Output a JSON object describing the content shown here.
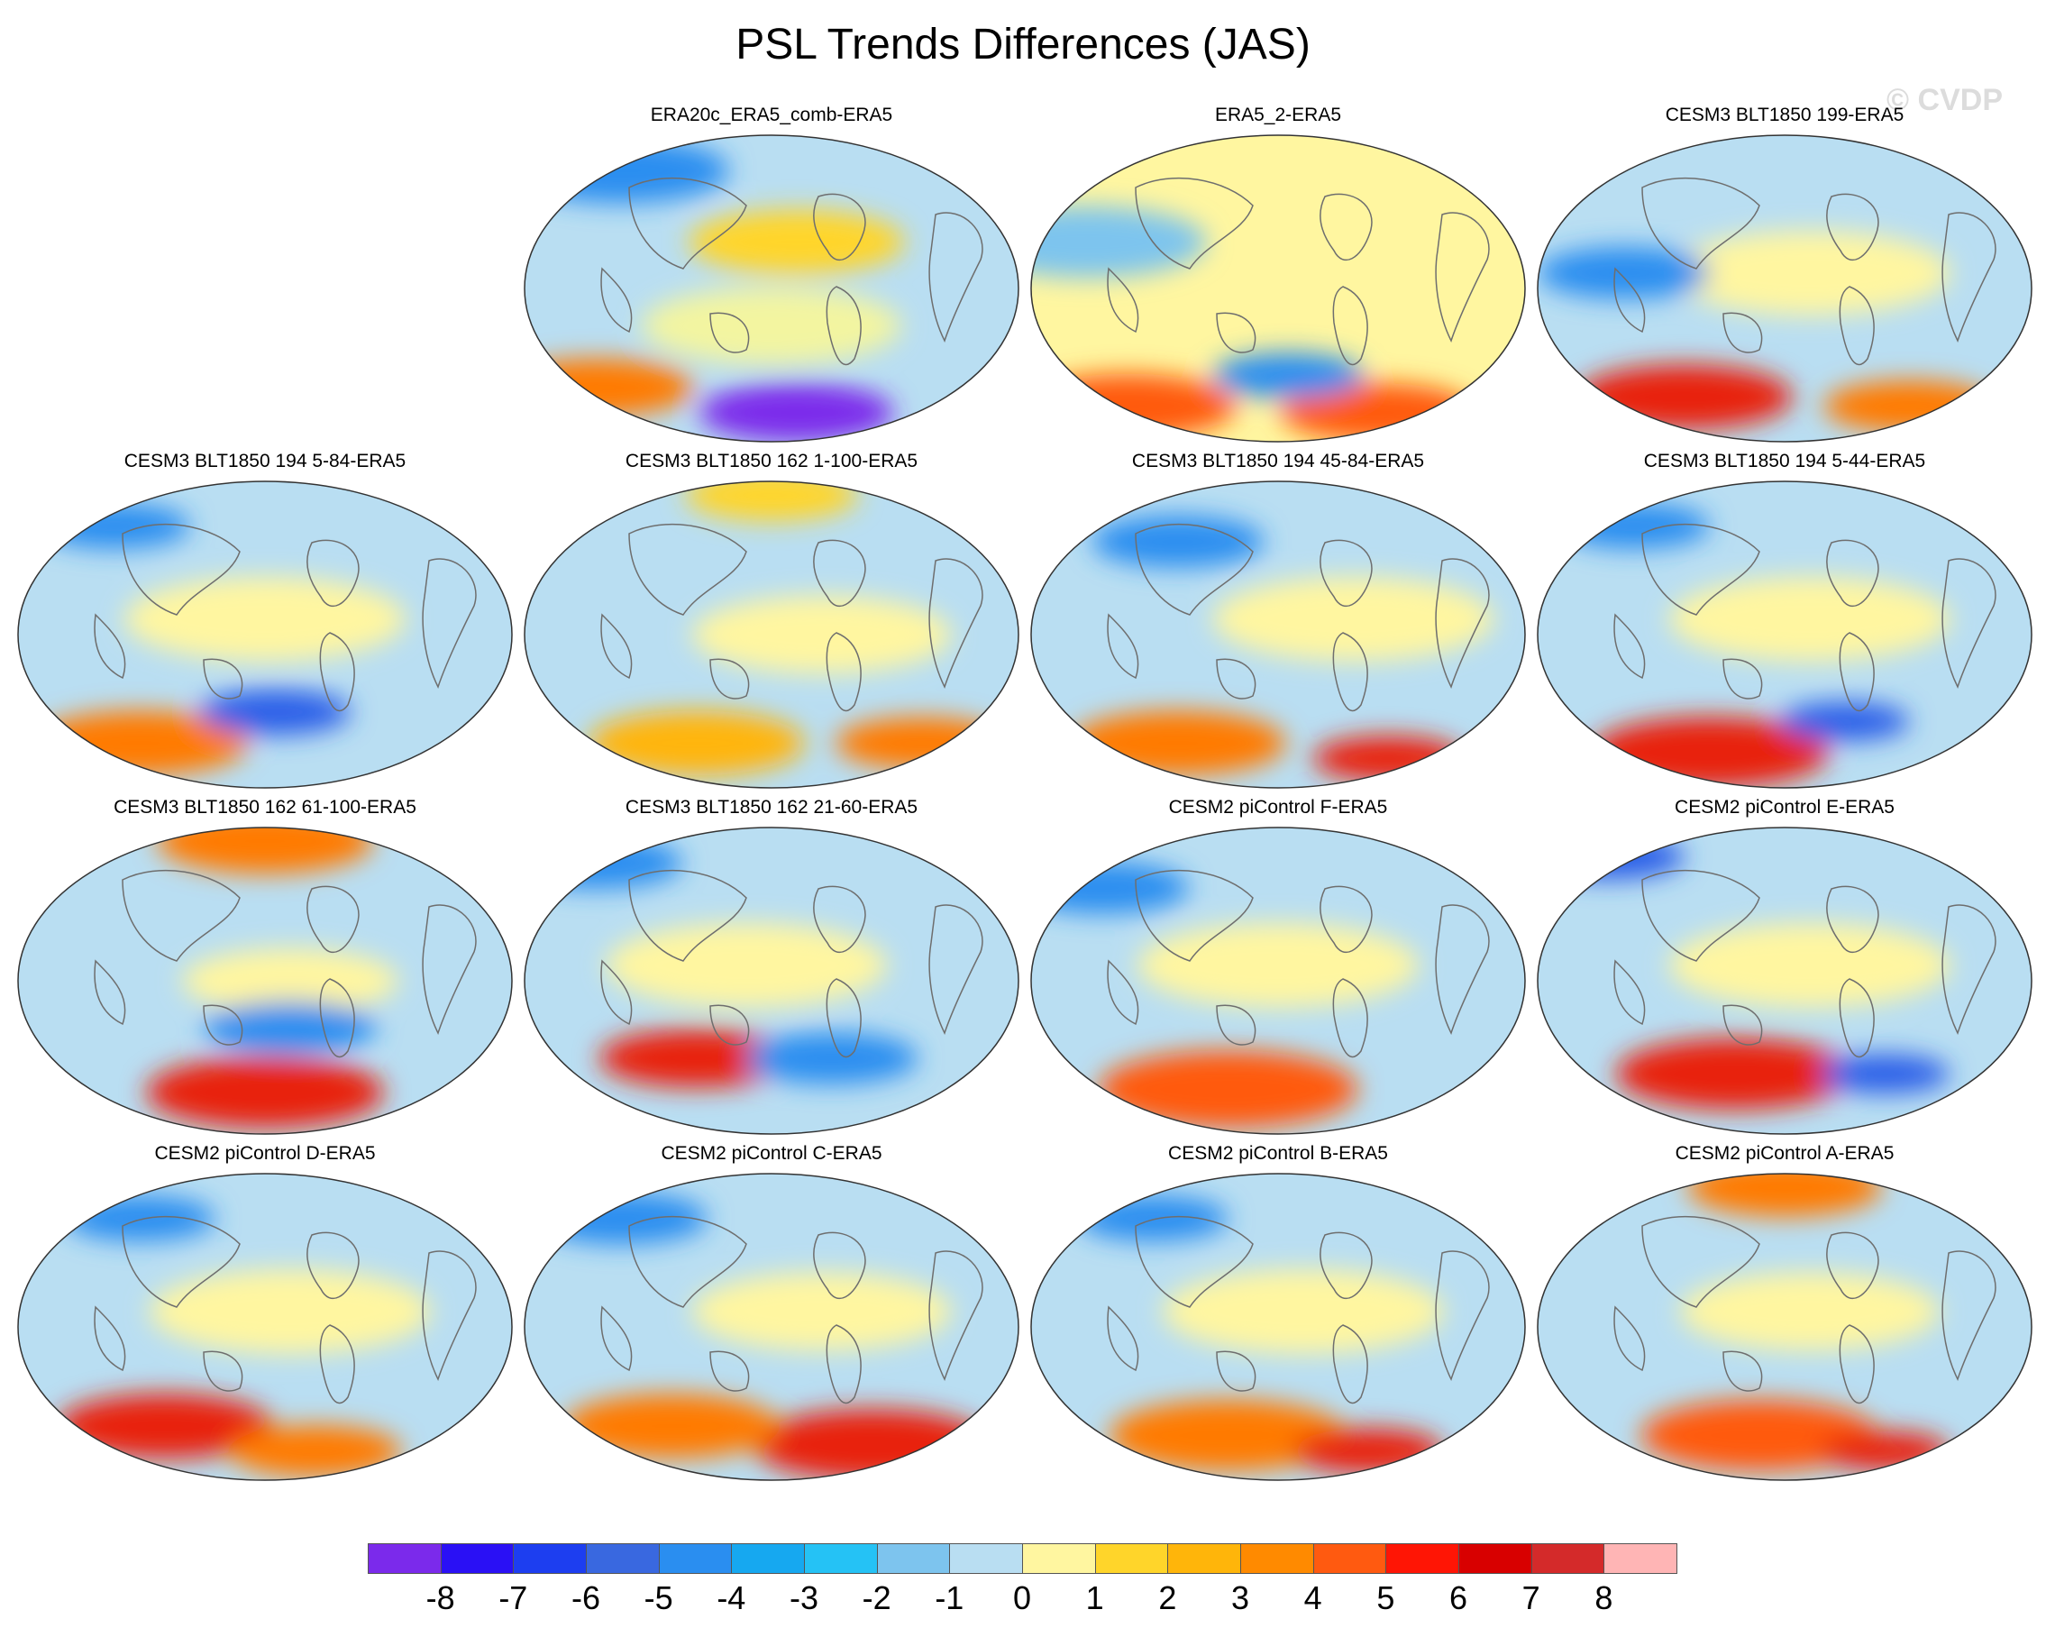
{
  "title": "PSL Trends Differences (JAS)",
  "watermark": "© CVDP",
  "panels": [
    {
      "label": "ERA20c_ERA5_comb-ERA5",
      "base": "#b9def2",
      "blobs": [
        {
          "color": "#2a8ef0",
          "lat": 0.12,
          "lon": 0.2,
          "s": 1.0
        },
        {
          "color": "#ffd52a",
          "lat": 0.35,
          "lon": 0.55,
          "s": 1.0
        },
        {
          "color": "#ff7a00",
          "lat": 0.82,
          "lon": 0.15,
          "s": 0.9
        },
        {
          "color": "#7b2aeb",
          "lat": 0.9,
          "lon": 0.55,
          "s": 0.9
        },
        {
          "color": "#f3f5a0",
          "lat": 0.62,
          "lon": 0.5,
          "s": 1.2
        }
      ]
    },
    {
      "label": "ERA5_2-ERA5",
      "base": "#fff6a0",
      "blobs": [
        {
          "color": "#7dc4ee",
          "lat": 0.35,
          "lon": 0.12,
          "s": 1.1
        },
        {
          "color": "#ff5a10",
          "lat": 0.88,
          "lon": 0.2,
          "s": 1.0
        },
        {
          "color": "#ff5a10",
          "lat": 0.9,
          "lon": 0.7,
          "s": 0.9
        },
        {
          "color": "#2a8ef0",
          "lat": 0.78,
          "lon": 0.52,
          "s": 0.7
        }
      ]
    },
    {
      "label": "CESM3 BLT1850 199-ERA5",
      "base": "#b9def2",
      "blobs": [
        {
          "color": "#fff6a0",
          "lat": 0.45,
          "lon": 0.55,
          "s": 1.3
        },
        {
          "color": "#e8240e",
          "lat": 0.85,
          "lon": 0.3,
          "s": 1.0
        },
        {
          "color": "#2a8ef0",
          "lat": 0.45,
          "lon": 0.18,
          "s": 0.8
        },
        {
          "color": "#ff7a00",
          "lat": 0.88,
          "lon": 0.75,
          "s": 0.8
        }
      ]
    },
    {
      "label": "CESM3 BLT1850 194 5-84-ERA5",
      "base": "#b9def2",
      "blobs": [
        {
          "color": "#fff6a0",
          "lat": 0.45,
          "lon": 0.5,
          "s": 1.3
        },
        {
          "color": "#ff7a00",
          "lat": 0.85,
          "lon": 0.25,
          "s": 1.0
        },
        {
          "color": "#2a5ee8",
          "lat": 0.75,
          "lon": 0.52,
          "s": 0.7
        },
        {
          "color": "#2a8ef0",
          "lat": 0.15,
          "lon": 0.2,
          "s": 0.7
        }
      ]
    },
    {
      "label": "CESM3 BLT1850 162 1-100-ERA5",
      "base": "#b9def2",
      "blobs": [
        {
          "color": "#fff6a0",
          "lat": 0.5,
          "lon": 0.6,
          "s": 1.2
        },
        {
          "color": "#ffb50a",
          "lat": 0.85,
          "lon": 0.35,
          "s": 1.0
        },
        {
          "color": "#ff7a00",
          "lat": 0.85,
          "lon": 0.8,
          "s": 0.8
        },
        {
          "color": "#ffd52a",
          "lat": 0.05,
          "lon": 0.5,
          "s": 0.8
        }
      ]
    },
    {
      "label": "CESM3 BLT1850 194 45-84-ERA5",
      "base": "#b9def2",
      "blobs": [
        {
          "color": "#fff6a0",
          "lat": 0.45,
          "lon": 0.65,
          "s": 1.3
        },
        {
          "color": "#ff7a00",
          "lat": 0.85,
          "lon": 0.3,
          "s": 1.0
        },
        {
          "color": "#e8240e",
          "lat": 0.9,
          "lon": 0.72,
          "s": 0.7
        },
        {
          "color": "#2a8ef0",
          "lat": 0.2,
          "lon": 0.3,
          "s": 0.8
        }
      ]
    },
    {
      "label": "CESM3 BLT1850 194 5-44-ERA5",
      "base": "#b9def2",
      "blobs": [
        {
          "color": "#fff6a0",
          "lat": 0.45,
          "lon": 0.55,
          "s": 1.3
        },
        {
          "color": "#e8240e",
          "lat": 0.88,
          "lon": 0.35,
          "s": 1.1
        },
        {
          "color": "#2a5ee8",
          "lat": 0.78,
          "lon": 0.62,
          "s": 0.6
        },
        {
          "color": "#2a8ef0",
          "lat": 0.15,
          "lon": 0.2,
          "s": 0.7
        }
      ]
    },
    {
      "label": "CESM3 BLT1850 162 61-100-ERA5",
      "base": "#b9def2",
      "blobs": [
        {
          "color": "#ff7a00",
          "lat": 0.05,
          "lon": 0.5,
          "s": 1.0
        },
        {
          "color": "#fff6a0",
          "lat": 0.5,
          "lon": 0.55,
          "s": 1.0
        },
        {
          "color": "#e8240e",
          "lat": 0.86,
          "lon": 0.5,
          "s": 1.1
        },
        {
          "color": "#2a8ef0",
          "lat": 0.65,
          "lon": 0.55,
          "s": 0.8
        }
      ]
    },
    {
      "label": "CESM3 BLT1850 162 21-60-ERA5",
      "base": "#b9def2",
      "blobs": [
        {
          "color": "#fff6a0",
          "lat": 0.45,
          "lon": 0.45,
          "s": 1.3
        },
        {
          "color": "#e8240e",
          "lat": 0.75,
          "lon": 0.35,
          "s": 0.9
        },
        {
          "color": "#2a8ef0",
          "lat": 0.75,
          "lon": 0.62,
          "s": 0.8
        },
        {
          "color": "#2a8ef0",
          "lat": 0.12,
          "lon": 0.15,
          "s": 0.8
        }
      ]
    },
    {
      "label": "CESM2 piControl F-ERA5",
      "base": "#b9def2",
      "blobs": [
        {
          "color": "#fff6a0",
          "lat": 0.45,
          "lon": 0.5,
          "s": 1.3
        },
        {
          "color": "#ff5a10",
          "lat": 0.85,
          "lon": 0.4,
          "s": 1.2
        },
        {
          "color": "#2a8ef0",
          "lat": 0.2,
          "lon": 0.15,
          "s": 0.8
        }
      ]
    },
    {
      "label": "CESM2 piControl E-ERA5",
      "base": "#b9def2",
      "blobs": [
        {
          "color": "#fff6a0",
          "lat": 0.45,
          "lon": 0.55,
          "s": 1.3
        },
        {
          "color": "#e8240e",
          "lat": 0.8,
          "lon": 0.4,
          "s": 1.1
        },
        {
          "color": "#2a5ee8",
          "lat": 0.8,
          "lon": 0.7,
          "s": 0.6
        },
        {
          "color": "#2a5ee8",
          "lat": 0.1,
          "lon": 0.15,
          "s": 0.7
        }
      ]
    },
    {
      "label": "CESM2 piControl D-ERA5",
      "base": "#b9def2",
      "blobs": [
        {
          "color": "#fff6a0",
          "lat": 0.45,
          "lon": 0.55,
          "s": 1.3
        },
        {
          "color": "#e8240e",
          "lat": 0.82,
          "lon": 0.3,
          "s": 1.0
        },
        {
          "color": "#ff7a00",
          "lat": 0.9,
          "lon": 0.6,
          "s": 0.8
        },
        {
          "color": "#2a8ef0",
          "lat": 0.15,
          "lon": 0.25,
          "s": 0.7
        }
      ]
    },
    {
      "label": "CESM2 piControl C-ERA5",
      "base": "#b9def2",
      "blobs": [
        {
          "color": "#fff6a0",
          "lat": 0.45,
          "lon": 0.6,
          "s": 1.2
        },
        {
          "color": "#e8240e",
          "lat": 0.88,
          "lon": 0.7,
          "s": 1.1
        },
        {
          "color": "#ff7a00",
          "lat": 0.82,
          "lon": 0.3,
          "s": 1.0
        },
        {
          "color": "#2a8ef0",
          "lat": 0.15,
          "lon": 0.2,
          "s": 0.8
        }
      ]
    },
    {
      "label": "CESM2 piControl B-ERA5",
      "base": "#b9def2",
      "blobs": [
        {
          "color": "#fff6a0",
          "lat": 0.45,
          "lon": 0.55,
          "s": 1.3
        },
        {
          "color": "#ff7a00",
          "lat": 0.85,
          "lon": 0.4,
          "s": 1.1
        },
        {
          "color": "#e8240e",
          "lat": 0.9,
          "lon": 0.68,
          "s": 0.7
        },
        {
          "color": "#2a8ef0",
          "lat": 0.15,
          "lon": 0.25,
          "s": 0.7
        }
      ]
    },
    {
      "label": "CESM2 piControl A-ERA5",
      "base": "#b9def2",
      "blobs": [
        {
          "color": "#ff7a00",
          "lat": 0.05,
          "lon": 0.5,
          "s": 0.9
        },
        {
          "color": "#fff6a0",
          "lat": 0.45,
          "lon": 0.55,
          "s": 1.2
        },
        {
          "color": "#ff5a10",
          "lat": 0.85,
          "lon": 0.45,
          "s": 1.1
        },
        {
          "color": "#e8240e",
          "lat": 0.9,
          "lon": 0.7,
          "s": 0.6
        }
      ]
    }
  ],
  "colorbar": {
    "labels": [
      "-8",
      "-7",
      "-6",
      "-5",
      "-4",
      "-3",
      "-2",
      "-1",
      "0",
      "1",
      "2",
      "3",
      "4",
      "5",
      "6",
      "7",
      "8"
    ],
    "colors": [
      "#7b2aeb",
      "#2a10f5",
      "#1d3ef0",
      "#3968e0",
      "#2a8ef0",
      "#16a8f0",
      "#25c2f5",
      "#7dc4ee",
      "#b9def2",
      "#fff6a0",
      "#ffd52a",
      "#ffb50a",
      "#ff8a00",
      "#ff5a10",
      "#ff1505",
      "#d80000",
      "#d42a2a",
      "#ffb5b5"
    ]
  }
}
